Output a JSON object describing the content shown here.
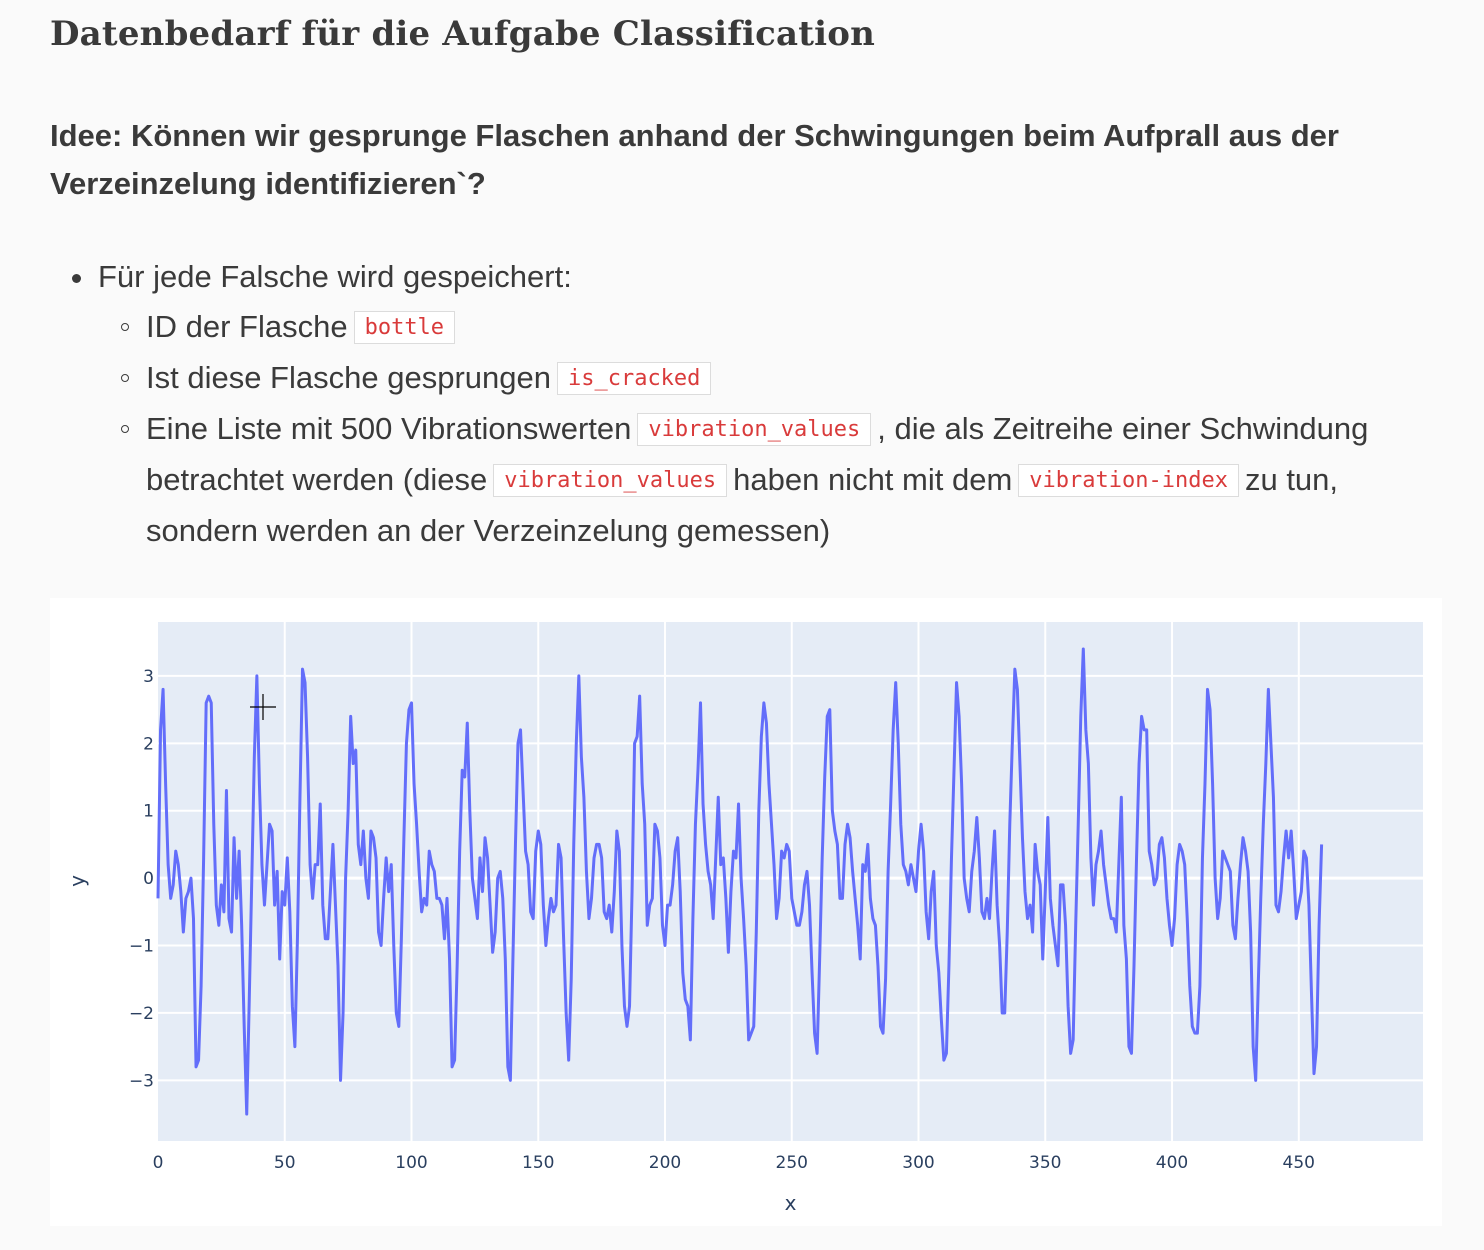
{
  "heading": "Datenbedarf für die Aufgabe Classification",
  "subheading": "Idee: Können wir gesprunge Flaschen anhand der Schwingungen beim Aufprall aus der Verzeinzelung identifizieren`?",
  "list": {
    "item1": "Für jede Falsche wird gespeichert:",
    "sub1_text": "ID der Flasche",
    "sub1_code": "bottle",
    "sub2_text": "Ist diese Flasche gesprungen",
    "sub2_code": "is_cracked",
    "sub3_text_a": "Eine Liste mit 500 Vibrationswerten",
    "sub3_code_a": "vibration_values",
    "sub3_text_b": ", die als Zeitreihe einer Schwindung betrachtet werden (diese",
    "sub3_code_b": "vibration_values",
    "sub3_text_c": "haben nicht mit dem",
    "sub3_code_c": "vibration-index",
    "sub3_text_d": "zu tun, sondern werden an der Verzeinzelung gemessen)"
  },
  "colors": {
    "line": "#636efa",
    "plot_bg": "#e5ecf6",
    "code_text": "#d93b3b"
  },
  "chart_data": {
    "type": "line",
    "xlabel": "x",
    "ylabel": "y",
    "xlim": [
      0,
      499
    ],
    "ylim": [
      -3.9,
      3.8
    ],
    "xticks": [
      0,
      50,
      100,
      150,
      200,
      250,
      300,
      350,
      400,
      450
    ],
    "yticks": [
      -3,
      -2,
      -1,
      0,
      1,
      2,
      3
    ],
    "ytick_labels": [
      "−3",
      "−2",
      "−1",
      "0",
      "1",
      "2",
      "3"
    ],
    "grid": true,
    "series": [
      {
        "x_start": 0,
        "x_step": 1,
        "values": [
          -0.3,
          2.2,
          2.8,
          1.4,
          0.2,
          -0.3,
          -0.1,
          0.4,
          0.2,
          -0.2,
          -0.8,
          -0.3,
          -0.2,
          0.0,
          -0.6,
          -2.8,
          -2.7,
          -1.6,
          0.3,
          2.6,
          2.7,
          2.6,
          0.8,
          -0.4,
          -0.7,
          -0.1,
          -0.5,
          1.3,
          -0.6,
          -0.8,
          0.6,
          -0.3,
          0.4,
          -0.7,
          -2.2,
          -3.5,
          -1.8,
          0.0,
          1.8,
          3.0,
          1.4,
          0.2,
          -0.4,
          0.2,
          0.8,
          0.7,
          -0.4,
          0.1,
          -1.2,
          -0.2,
          -0.4,
          0.3,
          -0.5,
          -1.9,
          -2.5,
          -0.9,
          1.2,
          3.1,
          2.9,
          1.8,
          0.2,
          -0.3,
          0.2,
          0.2,
          1.1,
          -0.4,
          -0.9,
          -0.9,
          -0.2,
          0.5,
          -0.4,
          -1.3,
          -3.0,
          -2.0,
          0.0,
          1.0,
          2.4,
          1.7,
          1.9,
          0.5,
          0.2,
          0.7,
          0.0,
          -0.3,
          0.7,
          0.6,
          0.3,
          -0.8,
          -1.0,
          -0.3,
          0.3,
          -0.2,
          0.2,
          -1.0,
          -2.0,
          -2.2,
          -0.9,
          0.6,
          2.0,
          2.5,
          2.6,
          1.4,
          0.8,
          0.1,
          -0.5,
          -0.3,
          -0.4,
          0.4,
          0.2,
          0.1,
          -0.3,
          -0.3,
          -0.4,
          -0.9,
          -0.3,
          -1.2,
          -2.8,
          -2.7,
          -1.3,
          0.4,
          1.6,
          1.5,
          2.3,
          1.0,
          0.0,
          -0.3,
          -0.6,
          0.3,
          -0.2,
          0.6,
          0.3,
          -0.4,
          -1.1,
          -0.8,
          0.0,
          0.1,
          -0.3,
          -1.2,
          -2.8,
          -3.0,
          -1.2,
          0.5,
          2.0,
          2.2,
          1.3,
          0.4,
          0.2,
          -0.5,
          -0.6,
          0.4,
          0.7,
          0.5,
          -0.4,
          -1.0,
          -0.6,
          -0.3,
          -0.5,
          -0.4,
          0.5,
          0.3,
          -0.9,
          -2.0,
          -2.7,
          -1.5,
          0.5,
          2.0,
          3.0,
          1.8,
          1.2,
          0.1,
          -0.6,
          -0.3,
          0.3,
          0.5,
          0.5,
          0.3,
          -0.5,
          -0.6,
          -0.4,
          -0.8,
          -0.2,
          0.7,
          0.4,
          -1.0,
          -1.9,
          -2.2,
          -1.9,
          -0.2,
          2.0,
          2.1,
          2.7,
          1.4,
          0.8,
          -0.7,
          -0.4,
          -0.3,
          0.8,
          0.7,
          0.3,
          -0.7,
          -1.0,
          -0.4,
          -0.4,
          -0.1,
          0.4,
          0.6,
          -0.2,
          -1.4,
          -1.8,
          -1.9,
          -2.4,
          -0.6,
          0.8,
          1.6,
          2.6,
          1.1,
          0.5,
          0.1,
          -0.1,
          -0.6,
          0.3,
          1.2,
          0.2,
          0.3,
          -0.3,
          -1.1,
          -0.2,
          0.4,
          0.3,
          1.1,
          0.0,
          -0.6,
          -1.3,
          -2.4,
          -2.3,
          -2.2,
          -0.8,
          1.0,
          2.1,
          2.6,
          2.3,
          1.4,
          0.8,
          0.2,
          -0.6,
          -0.3,
          0.4,
          0.3,
          0.5,
          0.4,
          -0.3,
          -0.5,
          -0.7,
          -0.7,
          -0.5,
          -0.1,
          0.1,
          -0.4,
          -1.4,
          -2.3,
          -2.6,
          -1.2,
          0.3,
          1.5,
          2.4,
          2.5,
          1.0,
          0.7,
          0.5,
          -0.3,
          -0.3,
          0.5,
          0.8,
          0.6,
          0.1,
          -0.3,
          -0.7,
          -1.2,
          0.2,
          0.1,
          0.5,
          -0.3,
          -0.6,
          -0.7,
          -1.3,
          -2.2,
          -2.3,
          -1.5,
          0.1,
          1.1,
          2.2,
          2.9,
          2.0,
          0.8,
          0.2,
          0.1,
          -0.1,
          0.2,
          0.0,
          -0.2,
          0.4,
          0.8,
          0.4,
          -0.5,
          -0.9,
          -0.2,
          0.1,
          -1.0,
          -1.4,
          -2.1,
          -2.7,
          -2.6,
          -1.3,
          0.3,
          1.6,
          2.9,
          2.4,
          1.4,
          0.0,
          -0.3,
          -0.5,
          0.1,
          0.4,
          0.9,
          0.3,
          -0.5,
          -0.6,
          -0.3,
          -0.6,
          0.1,
          0.7,
          -0.4,
          -1.0,
          -2.0,
          -2.0,
          -0.8,
          0.8,
          2.0,
          3.1,
          2.8,
          1.7,
          0.6,
          -0.2,
          -0.6,
          -0.4,
          -0.8,
          0.5,
          0.1,
          -0.1,
          -1.2,
          -0.2,
          0.9,
          -0.3,
          -0.7,
          -1.0,
          -1.3,
          -0.1,
          -0.1,
          -0.7,
          -1.9,
          -2.6,
          -2.4,
          -0.7,
          0.8,
          2.4,
          3.4,
          2.2,
          1.7,
          0.3,
          -0.4,
          0.2,
          0.4,
          0.7,
          0.2,
          -0.1,
          -0.4,
          -0.6,
          -0.6,
          -0.8,
          0.2,
          1.2,
          -0.7,
          -1.2,
          -2.5,
          -2.6,
          -1.3,
          0.3,
          1.7,
          2.4,
          2.2,
          2.2,
          0.4,
          0.2,
          -0.1,
          0.0,
          0.5,
          0.6,
          0.3,
          -0.3,
          -0.7,
          -1.0,
          -0.6,
          0.2,
          0.5,
          0.4,
          0.2,
          -0.6,
          -1.6,
          -2.2,
          -2.3,
          -2.3,
          -1.6,
          0.3,
          1.4,
          2.8,
          2.5,
          1.4,
          0.0,
          -0.6,
          -0.3,
          0.4,
          0.3,
          0.2,
          0.1,
          -0.7,
          -0.9,
          -0.3,
          0.2,
          0.6,
          0.4,
          0.1,
          -0.8,
          -2.5,
          -3.0,
          -1.6,
          -0.3,
          0.8,
          1.7,
          2.8,
          2.0,
          1.2,
          -0.4,
          -0.5,
          -0.2,
          0.3,
          0.7,
          0.3,
          0.7,
          0.1,
          -0.6,
          -0.4,
          -0.2,
          0.4,
          0.3,
          -0.4,
          -1.7,
          -2.9,
          -2.5,
          -0.7,
          0.5
        ]
      }
    ]
  }
}
